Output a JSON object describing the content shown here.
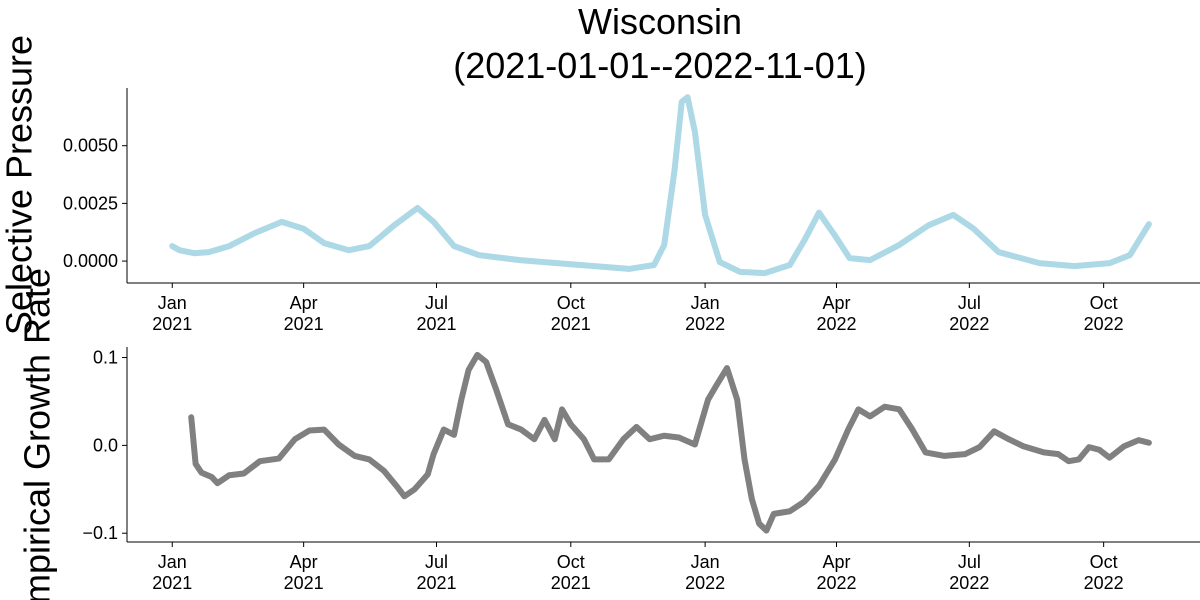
{
  "chart_data": [
    {
      "type": "line",
      "title": "Wisconsin\n(2021-01-01--2022-11-01)",
      "ylabel": "Selective Pressure",
      "color": "#add8e6",
      "x": [
        "2021-01-01",
        "2021-01-06",
        "2021-01-16",
        "2021-01-26",
        "2021-02-09",
        "2021-02-26",
        "2021-03-17",
        "2021-04-01",
        "2021-04-15",
        "2021-05-02",
        "2021-05-16",
        "2021-06-02",
        "2021-06-18",
        "2021-06-29",
        "2021-07-13",
        "2021-07-30",
        "2021-08-27",
        "2021-09-30",
        "2021-11-10",
        "2021-11-27",
        "2021-12-04",
        "2021-12-11",
        "2021-12-16",
        "2021-12-20",
        "2021-12-25",
        "2022-01-01",
        "2022-01-11",
        "2022-01-25",
        "2022-02-11",
        "2022-02-28",
        "2022-03-10",
        "2022-03-20",
        "2022-03-31",
        "2022-04-10",
        "2022-04-24",
        "2022-05-14",
        "2022-06-03",
        "2022-06-20",
        "2022-07-04",
        "2022-07-21",
        "2022-08-18",
        "2022-09-11",
        "2022-10-05",
        "2022-10-19",
        "2022-11-01"
      ],
      "values": [
        0.00065,
        0.00047,
        0.00034,
        0.00039,
        0.00065,
        0.0012,
        0.0017,
        0.0014,
        0.00078,
        0.00047,
        0.00065,
        0.00155,
        0.0023,
        0.0017,
        0.00065,
        0.00026,
        4e-05,
        -0.00013,
        -0.00034,
        -0.00017,
        0.0007,
        0.0039,
        0.0069,
        0.0071,
        0.0056,
        0.002,
        -4e-05,
        -0.00047,
        -0.00052,
        -0.00017,
        0.0009,
        0.0021,
        0.0011,
        0.00013,
        4e-05,
        0.0007,
        0.00155,
        0.002,
        0.0014,
        0.00039,
        -9e-05,
        -0.00022,
        -9e-05,
        0.00026,
        0.0016
      ],
      "xlim": [
        "2020-12-01",
        "2022-12-06"
      ],
      "xticks": [
        {
          "value": "2021-01-01",
          "label": "Jan\n2021"
        },
        {
          "value": "2021-04-01",
          "label": "Apr\n2021"
        },
        {
          "value": "2021-07-01",
          "label": "Jul\n2021"
        },
        {
          "value": "2021-10-01",
          "label": "Oct\n2021"
        },
        {
          "value": "2022-01-01",
          "label": "Jan\n2022"
        },
        {
          "value": "2022-04-01",
          "label": "Apr\n2022"
        },
        {
          "value": "2022-07-01",
          "label": "Jul\n2022"
        },
        {
          "value": "2022-10-01",
          "label": "Oct\n2022"
        }
      ],
      "ylim": [
        -0.00095,
        0.0075
      ],
      "yticks": [
        {
          "value": 0,
          "label": "0.0000"
        },
        {
          "value": 0.0025,
          "label": "0.0025"
        },
        {
          "value": 0.005,
          "label": "0.0050"
        }
      ]
    },
    {
      "type": "line",
      "ylabel": "Empirical Growth Rate",
      "color": "#808080",
      "x": [
        "2021-01-14",
        "2021-01-17",
        "2021-01-21",
        "2021-01-28",
        "2021-02-01",
        "2021-02-09",
        "2021-02-19",
        "2021-03-02",
        "2021-03-15",
        "2021-03-26",
        "2021-04-05",
        "2021-04-15",
        "2021-04-25",
        "2021-05-06",
        "2021-05-16",
        "2021-05-26",
        "2021-06-04",
        "2021-06-09",
        "2021-06-16",
        "2021-06-25",
        "2021-06-29",
        "2021-07-06",
        "2021-07-13",
        "2021-07-18",
        "2021-07-23",
        "2021-07-29",
        "2021-08-04",
        "2021-08-11",
        "2021-08-19",
        "2021-08-28",
        "2021-09-06",
        "2021-09-13",
        "2021-09-20",
        "2021-09-25",
        "2021-10-01",
        "2021-10-10",
        "2021-10-17",
        "2021-10-27",
        "2021-11-06",
        "2021-11-15",
        "2021-11-24",
        "2021-12-04",
        "2021-12-14",
        "2021-12-25",
        "2022-01-03",
        "2022-01-09",
        "2022-01-16",
        "2022-01-23",
        "2022-01-28",
        "2022-02-02",
        "2022-02-07",
        "2022-02-12",
        "2022-02-17",
        "2022-02-28",
        "2022-03-10",
        "2022-03-20",
        "2022-03-31",
        "2022-04-09",
        "2022-04-16",
        "2022-04-24",
        "2022-05-04",
        "2022-05-14",
        "2022-05-23",
        "2022-06-01",
        "2022-06-14",
        "2022-06-28",
        "2022-07-08",
        "2022-07-18",
        "2022-07-28",
        "2022-08-07",
        "2022-08-21",
        "2022-08-31",
        "2022-09-07",
        "2022-09-14",
        "2022-09-21",
        "2022-09-28",
        "2022-10-05",
        "2022-10-15",
        "2022-10-25",
        "2022-11-01"
      ],
      "values": [
        0.032,
        -0.021,
        -0.031,
        -0.036,
        -0.043,
        -0.034,
        -0.032,
        -0.018,
        -0.015,
        0.007,
        0.017,
        0.018,
        0.001,
        -0.012,
        -0.016,
        -0.029,
        -0.047,
        -0.058,
        -0.05,
        -0.033,
        -0.01,
        0.018,
        0.012,
        0.052,
        0.086,
        0.103,
        0.095,
        0.063,
        0.024,
        0.018,
        0.007,
        0.029,
        0.007,
        0.041,
        0.024,
        0.007,
        -0.016,
        -0.016,
        0.007,
        0.021,
        0.007,
        0.011,
        0.009,
        0.001,
        0.052,
        0.069,
        0.088,
        0.052,
        -0.016,
        -0.061,
        -0.089,
        -0.097,
        -0.078,
        -0.075,
        -0.064,
        -0.046,
        -0.016,
        0.018,
        0.041,
        0.033,
        0.044,
        0.041,
        0.018,
        -0.008,
        -0.012,
        -0.01,
        -0.002,
        0.016,
        0.007,
        -0.001,
        -0.008,
        -0.01,
        -0.018,
        -0.016,
        -0.002,
        -0.005,
        -0.014,
        -0.001,
        0.006,
        0.003
      ],
      "xlim": [
        "2020-12-01",
        "2022-12-06"
      ],
      "xticks": [
        {
          "value": "2021-01-01",
          "label": "Jan\n2021"
        },
        {
          "value": "2021-04-01",
          "label": "Apr\n2021"
        },
        {
          "value": "2021-07-01",
          "label": "Jul\n2021"
        },
        {
          "value": "2021-10-01",
          "label": "Oct\n2021"
        },
        {
          "value": "2022-01-01",
          "label": "Jan\n2022"
        },
        {
          "value": "2022-04-01",
          "label": "Apr\n2022"
        },
        {
          "value": "2022-07-01",
          "label": "Jul\n2022"
        },
        {
          "value": "2022-10-01",
          "label": "Oct\n2022"
        }
      ],
      "ylim": [
        -0.11,
        0.112
      ],
      "yticks": [
        {
          "value": -0.1,
          "label": "−0.1"
        },
        {
          "value": 0,
          "label": "0.0"
        },
        {
          "value": 0.1,
          "label": "0.1"
        }
      ]
    }
  ]
}
